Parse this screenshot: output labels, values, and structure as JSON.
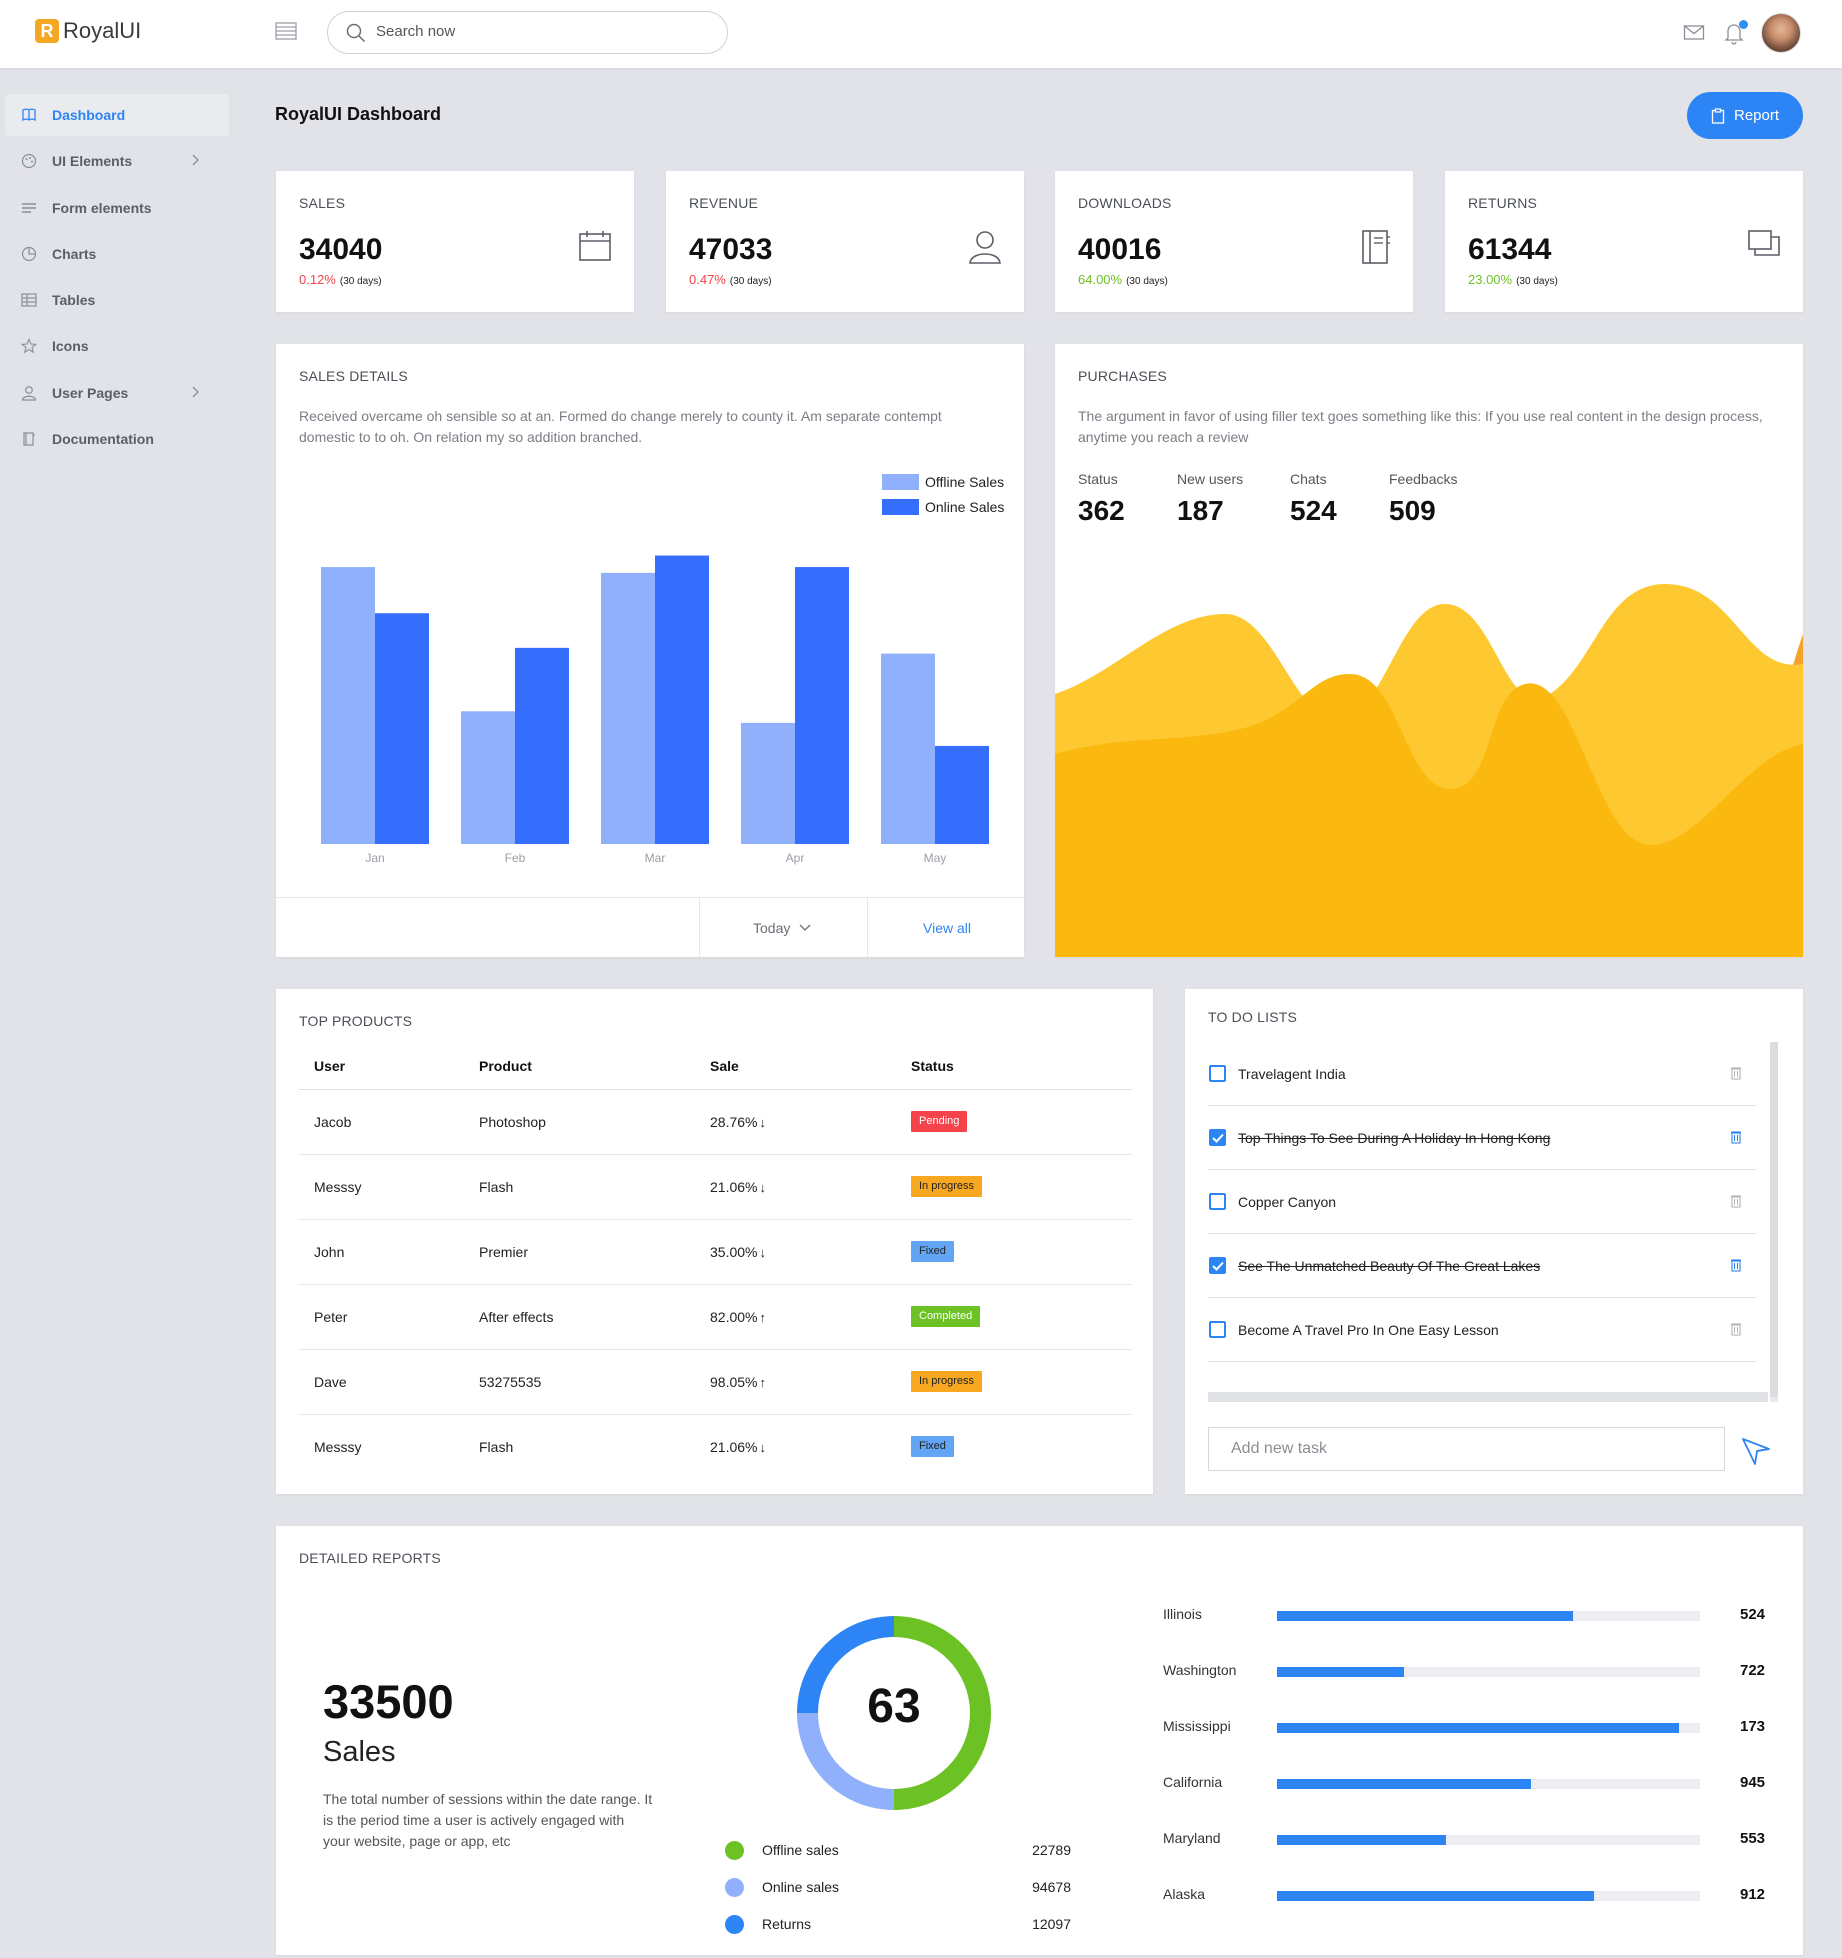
{
  "app": {
    "logo_letter": "R",
    "name": "RoyalUI"
  },
  "search": {
    "placeholder": "Search now"
  },
  "sidebar": {
    "items": [
      {
        "label": "Dashboard",
        "icon": "dashboard-icon",
        "active": true
      },
      {
        "label": "UI Elements",
        "icon": "palette-icon",
        "has_submenu": true
      },
      {
        "label": "Form elements",
        "icon": "list-icon"
      },
      {
        "label": "Charts",
        "icon": "pie-chart-icon"
      },
      {
        "label": "Tables",
        "icon": "table-icon"
      },
      {
        "label": "Icons",
        "icon": "star-icon"
      },
      {
        "label": "User Pages",
        "icon": "user-icon",
        "has_submenu": true
      },
      {
        "label": "Documentation",
        "icon": "book-icon"
      }
    ]
  },
  "header": {
    "title": "RoyalUI Dashboard",
    "report_label": "Report"
  },
  "stats": [
    {
      "title": "SALES",
      "value": "34040",
      "change": "0.12%",
      "period": "(30 days)",
      "trend": "negative",
      "icon": "calendar-icon"
    },
    {
      "title": "REVENUE",
      "value": "47033",
      "change": "0.47%",
      "period": "(30 days)",
      "trend": "negative",
      "icon": "user-icon"
    },
    {
      "title": "DOWNLOADS",
      "value": "40016",
      "change": "64.00%",
      "period": "(30 days)",
      "trend": "positive",
      "icon": "notebook-icon"
    },
    {
      "title": "RETURNS",
      "value": "61344",
      "change": "23.00%",
      "period": "(30 days)",
      "trend": "positive",
      "icon": "layers-icon"
    }
  ],
  "sales_details": {
    "title": "SALES DETAILS",
    "description": "Received overcame oh sensible so at an. Formed do change merely to county it. Am separate contempt domestic to to oh. On relation my so addition branched.",
    "footer_select": "Today",
    "view_all": "View all"
  },
  "chart_data": {
    "type": "bar",
    "categories": [
      "Jan",
      "Feb",
      "Mar",
      "Apr",
      "May"
    ],
    "series": [
      {
        "name": "Offline Sales",
        "values": [
          480,
          230,
          470,
          210,
          330
        ],
        "color": "#90b0fc"
      },
      {
        "name": "Online Sales",
        "values": [
          400,
          340,
          500,
          480,
          170
        ],
        "color": "#356dfd"
      }
    ],
    "ylim": [
      0,
      520
    ],
    "legend": "top-right",
    "grid": false
  },
  "purchases": {
    "title": "PURCHASES",
    "description": "The argument in favor of using filler text goes something like this: If you use real content in the design process, anytime you reach a review",
    "metrics": [
      {
        "label": "Status",
        "value": "362"
      },
      {
        "label": "New users",
        "value": "187"
      },
      {
        "label": "Chats",
        "value": "524"
      },
      {
        "label": "Feedbacks",
        "value": "509"
      }
    ],
    "colors": [
      "#fec930",
      "#f4a32a",
      "#fbb910"
    ]
  },
  "top_products": {
    "title": "TOP PRODUCTS",
    "columns": [
      "User",
      "Product",
      "Sale",
      "Status"
    ],
    "rows": [
      {
        "user": "Jacob",
        "product": "Photoshop",
        "sale": "28.76%",
        "trend": "down",
        "status": "Pending",
        "status_kind": "pending"
      },
      {
        "user": "Messsy",
        "product": "Flash",
        "sale": "21.06%",
        "trend": "down",
        "status": "In progress",
        "status_kind": "progress"
      },
      {
        "user": "John",
        "product": "Premier",
        "sale": "35.00%",
        "trend": "down",
        "status": "Fixed",
        "status_kind": "fixed"
      },
      {
        "user": "Peter",
        "product": "After effects",
        "sale": "82.00%",
        "trend": "up",
        "status": "Completed",
        "status_kind": "completed"
      },
      {
        "user": "Dave",
        "product": "53275535",
        "sale": "98.05%",
        "trend": "up",
        "status": "In progress",
        "status_kind": "progress"
      },
      {
        "user": "Messsy",
        "product": "Flash",
        "sale": "21.06%",
        "trend": "down",
        "status": "Fixed",
        "status_kind": "fixed"
      }
    ]
  },
  "todo": {
    "title": "TO DO LISTS",
    "items": [
      {
        "text": "Travelagent India",
        "done": false
      },
      {
        "text": "Top Things To See During A Holiday In Hong Kong",
        "done": true
      },
      {
        "text": "Copper Canyon",
        "done": false
      },
      {
        "text": "See The Unmatched Beauty Of The Great Lakes",
        "done": true
      },
      {
        "text": "Become A Travel Pro In One Easy Lesson",
        "done": false
      }
    ],
    "input_placeholder": "Add new task"
  },
  "reports": {
    "title": "DETAILED REPORTS",
    "total": "33500",
    "total_label": "Sales",
    "description": "The total number of sessions within the date range. It is the period time a user is actively engaged with your website, page or app, etc",
    "donut_center": "63",
    "donut_segments": [
      {
        "label": "Offline sales",
        "value": "22789",
        "color": "#6cc225",
        "fraction": 0.5
      },
      {
        "label": "Online sales",
        "value": "94678",
        "color": "#90b0fc",
        "fraction": 0.25
      },
      {
        "label": "Returns",
        "value": "12097",
        "color": "#2d85f5",
        "fraction": 0.25
      }
    ],
    "states": [
      {
        "name": "Illinois",
        "value": "524",
        "fill": 0.7
      },
      {
        "name": "Washington",
        "value": "722",
        "fill": 0.3
      },
      {
        "name": "Mississippi",
        "value": "173",
        "fill": 0.95
      },
      {
        "name": "California",
        "value": "945",
        "fill": 0.6
      },
      {
        "name": "Maryland",
        "value": "553",
        "fill": 0.4
      },
      {
        "name": "Alaska",
        "value": "912",
        "fill": 0.75
      }
    ]
  }
}
